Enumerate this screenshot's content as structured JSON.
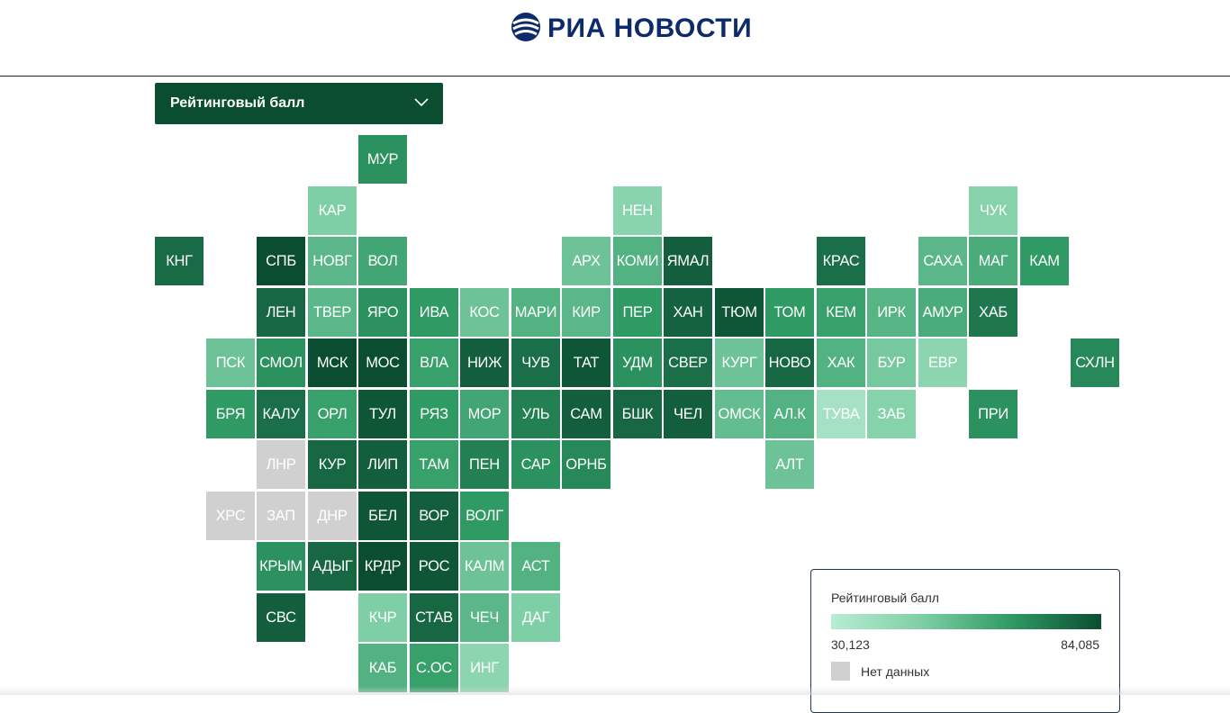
{
  "header": {
    "logo_text": "РИА НОВОСТИ"
  },
  "dropdown": {
    "label": "Рейтинговый балл"
  },
  "legend": {
    "title": "Рейтинговый балл",
    "min_label": "30,123",
    "max_label": "84,085",
    "nodata_label": "Нет данных"
  },
  "colors": {
    "nodata": "#d0d0d0",
    "scale": [
      "#b8ecd2",
      "#7fcfa6",
      "#2f9a64",
      "#0b4d31"
    ],
    "accent": "#0b4d31"
  },
  "chart_data": {
    "type": "heatmap",
    "title": "Рейтинговый балл",
    "value_range": [
      30.123,
      84.085
    ],
    "cells": [
      {
        "label": "МУР",
        "row": 0,
        "col": 4,
        "value": 68
      },
      {
        "label": "КАР",
        "row": 1,
        "col": 3,
        "value": 48
      },
      {
        "label": "НЕН",
        "row": 1,
        "col": 9,
        "value": 45
      },
      {
        "label": "ЧУК",
        "row": 1,
        "col": 16,
        "value": 46
      },
      {
        "label": "КНГ",
        "row": 2,
        "col": 0,
        "value": 77
      },
      {
        "label": "СПБ",
        "row": 2,
        "col": 2,
        "value": 84
      },
      {
        "label": "НОВГ",
        "row": 2,
        "col": 3,
        "value": 56
      },
      {
        "label": "ВОЛ",
        "row": 2,
        "col": 4,
        "value": 62
      },
      {
        "label": "АРХ",
        "row": 2,
        "col": 8,
        "value": 52
      },
      {
        "label": "КОМИ",
        "row": 2,
        "col": 9,
        "value": 58
      },
      {
        "label": "ЯМАЛ",
        "row": 2,
        "col": 10,
        "value": 80
      },
      {
        "label": "КРАС",
        "row": 2,
        "col": 13,
        "value": 76
      },
      {
        "label": "САХА",
        "row": 2,
        "col": 15,
        "value": 56
      },
      {
        "label": "МАГ",
        "row": 2,
        "col": 16,
        "value": 60
      },
      {
        "label": "КАМ",
        "row": 2,
        "col": 17,
        "value": 66
      },
      {
        "label": "ЛЕН",
        "row": 3,
        "col": 2,
        "value": 78
      },
      {
        "label": "ТВЕР",
        "row": 3,
        "col": 3,
        "value": 56
      },
      {
        "label": "ЯРО",
        "row": 3,
        "col": 4,
        "value": 68
      },
      {
        "label": "ИВА",
        "row": 3,
        "col": 5,
        "value": 66
      },
      {
        "label": "КОС",
        "row": 3,
        "col": 6,
        "value": 52
      },
      {
        "label": "МАРИ",
        "row": 3,
        "col": 7,
        "value": 58
      },
      {
        "label": "КИР",
        "row": 3,
        "col": 8,
        "value": 56
      },
      {
        "label": "ПЕР",
        "row": 3,
        "col": 9,
        "value": 66
      },
      {
        "label": "ХАН",
        "row": 3,
        "col": 10,
        "value": 79
      },
      {
        "label": "ТЮМ",
        "row": 3,
        "col": 11,
        "value": 82
      },
      {
        "label": "ТОМ",
        "row": 3,
        "col": 12,
        "value": 66
      },
      {
        "label": "КЕМ",
        "row": 3,
        "col": 13,
        "value": 64
      },
      {
        "label": "ИРК",
        "row": 3,
        "col": 14,
        "value": 57
      },
      {
        "label": "АМУР",
        "row": 3,
        "col": 15,
        "value": 60
      },
      {
        "label": "ХАБ",
        "row": 3,
        "col": 16,
        "value": 74
      },
      {
        "label": "ПСК",
        "row": 4,
        "col": 1,
        "value": 52
      },
      {
        "label": "СМОЛ",
        "row": 4,
        "col": 2,
        "value": 68
      },
      {
        "label": "МСК",
        "row": 4,
        "col": 3,
        "value": 84
      },
      {
        "label": "МОС",
        "row": 4,
        "col": 4,
        "value": 84
      },
      {
        "label": "ВЛА",
        "row": 4,
        "col": 5,
        "value": 64
      },
      {
        "label": "НИЖ",
        "row": 4,
        "col": 6,
        "value": 80
      },
      {
        "label": "ЧУВ",
        "row": 4,
        "col": 7,
        "value": 76
      },
      {
        "label": "ТАТ",
        "row": 4,
        "col": 8,
        "value": 82
      },
      {
        "label": "УДМ",
        "row": 4,
        "col": 9,
        "value": 68
      },
      {
        "label": "СВЕР",
        "row": 4,
        "col": 10,
        "value": 76
      },
      {
        "label": "КУРГ",
        "row": 4,
        "col": 11,
        "value": 52
      },
      {
        "label": "НОВО",
        "row": 4,
        "col": 12,
        "value": 78
      },
      {
        "label": "ХАК",
        "row": 4,
        "col": 13,
        "value": 58
      },
      {
        "label": "БУР",
        "row": 4,
        "col": 14,
        "value": 50
      },
      {
        "label": "ЕВР",
        "row": 4,
        "col": 15,
        "value": 44
      },
      {
        "label": "СХЛН",
        "row": 4,
        "col": 18,
        "value": 70
      },
      {
        "label": "БРЯ",
        "row": 5,
        "col": 1,
        "value": 66
      },
      {
        "label": "КАЛУ",
        "row": 5,
        "col": 2,
        "value": 76
      },
      {
        "label": "ОРЛ",
        "row": 5,
        "col": 3,
        "value": 64
      },
      {
        "label": "ТУЛ",
        "row": 5,
        "col": 4,
        "value": 82
      },
      {
        "label": "РЯЗ",
        "row": 5,
        "col": 5,
        "value": 66
      },
      {
        "label": "МОР",
        "row": 5,
        "col": 6,
        "value": 62
      },
      {
        "label": "УЛЬ",
        "row": 5,
        "col": 7,
        "value": 72
      },
      {
        "label": "САМ",
        "row": 5,
        "col": 8,
        "value": 80
      },
      {
        "label": "БШК",
        "row": 5,
        "col": 9,
        "value": 78
      },
      {
        "label": "ЧЕЛ",
        "row": 5,
        "col": 10,
        "value": 80
      },
      {
        "label": "ОМСК",
        "row": 5,
        "col": 11,
        "value": 54
      },
      {
        "label": "АЛ.К",
        "row": 5,
        "col": 12,
        "value": 58
      },
      {
        "label": "ТУВА",
        "row": 5,
        "col": 13,
        "value": 36
      },
      {
        "label": "ЗАБ",
        "row": 5,
        "col": 14,
        "value": 46
      },
      {
        "label": "ПРИ",
        "row": 5,
        "col": 16,
        "value": 68
      },
      {
        "label": "ЛНР",
        "row": 6,
        "col": 2,
        "value": null
      },
      {
        "label": "КУР",
        "row": 6,
        "col": 3,
        "value": 78
      },
      {
        "label": "ЛИП",
        "row": 6,
        "col": 4,
        "value": 80
      },
      {
        "label": "ТАМ",
        "row": 6,
        "col": 5,
        "value": 64
      },
      {
        "label": "ПЕН",
        "row": 6,
        "col": 6,
        "value": 72
      },
      {
        "label": "САР",
        "row": 6,
        "col": 7,
        "value": 68
      },
      {
        "label": "ОРНБ",
        "row": 6,
        "col": 8,
        "value": 70
      },
      {
        "label": "АЛТ",
        "row": 6,
        "col": 12,
        "value": 52
      },
      {
        "label": "ХРС",
        "row": 7,
        "col": 1,
        "value": null
      },
      {
        "label": "ЗАП",
        "row": 7,
        "col": 2,
        "value": null
      },
      {
        "label": "ДНР",
        "row": 7,
        "col": 3,
        "value": null
      },
      {
        "label": "БЕЛ",
        "row": 7,
        "col": 4,
        "value": 82
      },
      {
        "label": "ВОР",
        "row": 7,
        "col": 5,
        "value": 80
      },
      {
        "label": "ВОЛГ",
        "row": 7,
        "col": 6,
        "value": 66
      },
      {
        "label": "КРЫМ",
        "row": 8,
        "col": 2,
        "value": 68
      },
      {
        "label": "АДЫГ",
        "row": 8,
        "col": 3,
        "value": 78
      },
      {
        "label": "КРДР",
        "row": 8,
        "col": 4,
        "value": 84
      },
      {
        "label": "РОС",
        "row": 8,
        "col": 5,
        "value": 82
      },
      {
        "label": "КАЛМ",
        "row": 8,
        "col": 6,
        "value": 52
      },
      {
        "label": "АСТ",
        "row": 8,
        "col": 7,
        "value": 58
      },
      {
        "label": "СВС",
        "row": 9,
        "col": 2,
        "value": 80
      },
      {
        "label": "КЧР",
        "row": 9,
        "col": 4,
        "value": 48
      },
      {
        "label": "СТАВ",
        "row": 9,
        "col": 5,
        "value": 78
      },
      {
        "label": "ЧЕЧ",
        "row": 9,
        "col": 6,
        "value": 56
      },
      {
        "label": "ДАГ",
        "row": 9,
        "col": 7,
        "value": 48
      },
      {
        "label": "КАБ",
        "row": 10,
        "col": 4,
        "value": 58
      },
      {
        "label": "С.ОС",
        "row": 10,
        "col": 5,
        "value": 64
      },
      {
        "label": "ИНГ",
        "row": 10,
        "col": 6,
        "value": 44
      }
    ]
  }
}
